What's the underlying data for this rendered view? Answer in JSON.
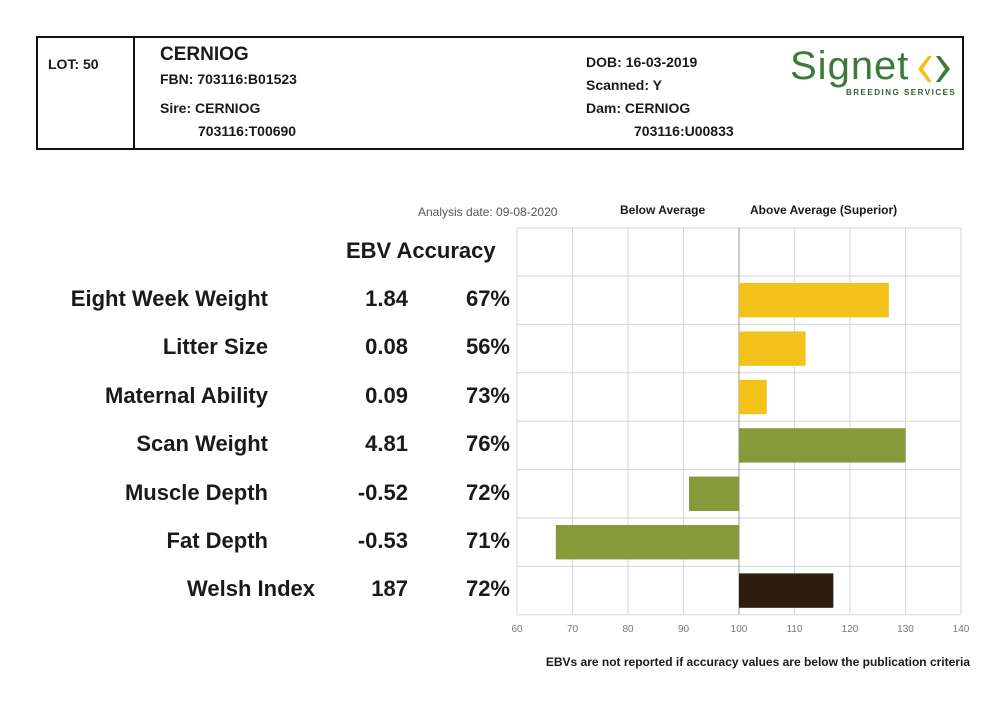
{
  "header": {
    "lot": "LOT: 50",
    "name": "CERNIOG",
    "fbn": "FBN: 703116:B01523",
    "sire_label": "Sire: CERNIOG",
    "sire_id": "703116:T00690",
    "dob": "DOB: 16-03-2019",
    "scanned": "Scanned: Y",
    "dam_label": "Dam: CERNIOG",
    "dam_id": "703116:U00833",
    "logo_word": "Signet",
    "logo_sub": "BREEDING SERVICES"
  },
  "chart_header": {
    "analysis_date": "Analysis date: 09-08-2020",
    "below_label": "Below Average",
    "above_label": "Above Average (Superior)",
    "col_titles": "EBV Accuracy"
  },
  "footnote": "EBVs are not reported if accuracy values are below the publication criteria",
  "colors": {
    "yellow": "#f2c21b",
    "olive": "#869a3a",
    "dark_brown": "#2b1d12",
    "grid": "#d6d6d6",
    "logo_green": "#3c7a3a"
  },
  "chart_data": {
    "type": "bar",
    "orientation": "horizontal",
    "xlim": [
      60,
      140
    ],
    "xticks": [
      60,
      70,
      80,
      90,
      100,
      110,
      120,
      130,
      140
    ],
    "baseline": 100,
    "grid": true,
    "rows": [
      {
        "trait": "Eight Week Weight",
        "ebv": "1.84",
        "accuracy": "67%",
        "index": 127,
        "color": "yellow"
      },
      {
        "trait": "Litter Size",
        "ebv": "0.08",
        "accuracy": "56%",
        "index": 112,
        "color": "yellow"
      },
      {
        "trait": "Maternal Ability",
        "ebv": "0.09",
        "accuracy": "73%",
        "index": 105,
        "color": "yellow"
      },
      {
        "trait": "Scan Weight",
        "ebv": "4.81",
        "accuracy": "76%",
        "index": 130,
        "color": "olive"
      },
      {
        "trait": "Muscle Depth",
        "ebv": "-0.52",
        "accuracy": "72%",
        "index": 91,
        "color": "olive"
      },
      {
        "trait": "Fat Depth",
        "ebv": "-0.53",
        "accuracy": "71%",
        "index": 67,
        "color": "olive"
      },
      {
        "trait": "Welsh Index",
        "ebv": "187",
        "accuracy": "72%",
        "index": 117,
        "color": "dark_brown"
      }
    ]
  }
}
